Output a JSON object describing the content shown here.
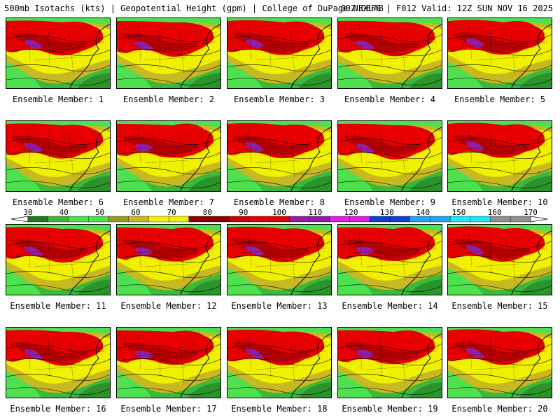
{
  "header": {
    "title": "500mb Isotachs (kts) | Geopotential Height (gpm) | College of DuPage NEXLAB",
    "run_info": "00Z GEFS | F012 Valid: 12Z SUN NOV 16 2025"
  },
  "member_label": "Ensemble Member:",
  "members": [
    1,
    2,
    3,
    4,
    5,
    6,
    7,
    8,
    9,
    10,
    11,
    12,
    13,
    14,
    15,
    16,
    17,
    18,
    19,
    20
  ],
  "colorbar": {
    "tick_labels": [
      "30",
      "40",
      "50",
      "60",
      "70",
      "80",
      "90",
      "100",
      "110",
      "120",
      "130",
      "140",
      "150",
      "160",
      "170"
    ],
    "colors": {
      "green_dark": "#1e7a1e",
      "green": "#3cb83c",
      "green_light": "#4fe04f",
      "olive": "#9a9a20",
      "olive_light": "#c8b822",
      "yellow": "#f0f000",
      "red_dark": "#8a0000",
      "red": "#c80000",
      "red_bright": "#e60000",
      "purple": "#8f1fa6",
      "magenta": "#e020e0",
      "blue": "#1040d0",
      "sky": "#20a8f0",
      "cyan": "#20e8f8",
      "gray": "#909090"
    }
  }
}
